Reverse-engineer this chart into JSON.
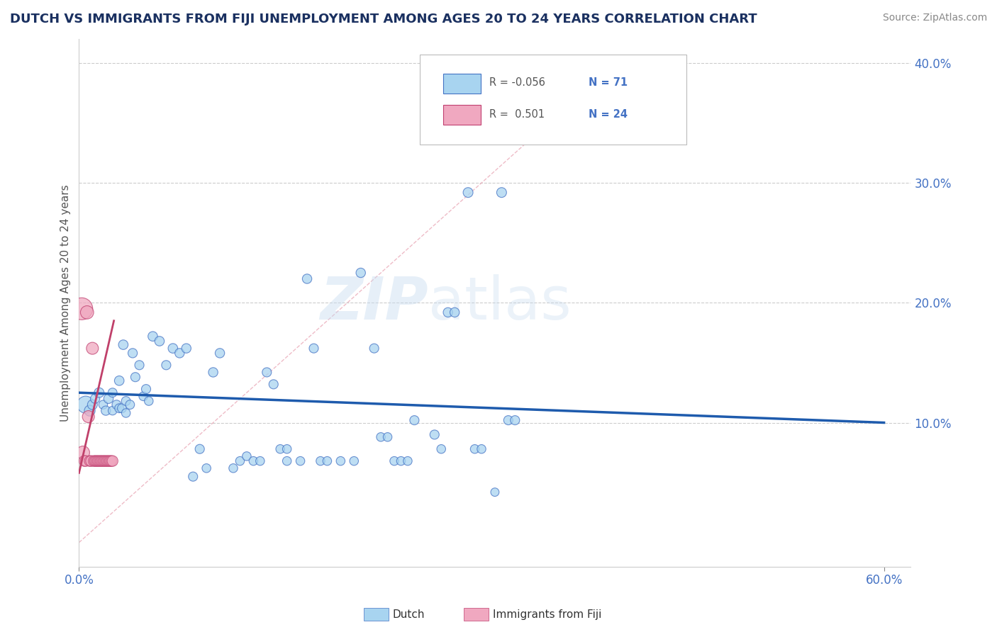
{
  "title": "DUTCH VS IMMIGRANTS FROM FIJI UNEMPLOYMENT AMONG AGES 20 TO 24 YEARS CORRELATION CHART",
  "source": "Source: ZipAtlas.com",
  "ylabel": "Unemployment Among Ages 20 to 24 years",
  "xlim": [
    0.0,
    0.62
  ],
  "ylim": [
    -0.02,
    0.42
  ],
  "xtick_positions": [
    0.0,
    0.6
  ],
  "xtick_labels": [
    "0.0%",
    "60.0%"
  ],
  "ytick_positions": [
    0.1,
    0.2,
    0.3,
    0.4
  ],
  "ytick_labels": [
    "10.0%",
    "20.0%",
    "30.0%",
    "40.0%"
  ],
  "grid_yticks": [
    0.1,
    0.2,
    0.3,
    0.4
  ],
  "legend_R1": "R = -0.056",
  "legend_N1": "N = 71",
  "legend_R2": "R =  0.501",
  "legend_N2": "N = 24",
  "legend_label1": "Dutch",
  "legend_label2": "Immigrants from Fiji",
  "color_dutch": "#A8D4F0",
  "color_fiji": "#F0A8C0",
  "color_dutch_edge": "#4472C4",
  "color_fiji_edge": "#C04070",
  "color_dutch_line": "#1E5BAD",
  "color_fiji_line": "#C0406A",
  "color_diag": "#E8A0A0",
  "color_title": "#1a3060",
  "color_axis_text": "#4472C4",
  "color_source": "#888888",
  "watermark": "ZIPatlas",
  "dutch_x": [
    0.005,
    0.008,
    0.01,
    0.012,
    0.015,
    0.018,
    0.02,
    0.022,
    0.025,
    0.025,
    0.028,
    0.03,
    0.03,
    0.032,
    0.033,
    0.035,
    0.035,
    0.038,
    0.04,
    0.042,
    0.045,
    0.048,
    0.05,
    0.052,
    0.055,
    0.06,
    0.065,
    0.07,
    0.075,
    0.08,
    0.085,
    0.09,
    0.095,
    0.1,
    0.105,
    0.115,
    0.12,
    0.125,
    0.13,
    0.135,
    0.14,
    0.145,
    0.15,
    0.155,
    0.155,
    0.165,
    0.17,
    0.175,
    0.18,
    0.185,
    0.195,
    0.205,
    0.21,
    0.22,
    0.225,
    0.23,
    0.235,
    0.24,
    0.245,
    0.25,
    0.265,
    0.27,
    0.275,
    0.28,
    0.29,
    0.295,
    0.3,
    0.31,
    0.315,
    0.32,
    0.325
  ],
  "dutch_y": [
    0.115,
    0.11,
    0.115,
    0.12,
    0.125,
    0.115,
    0.11,
    0.12,
    0.125,
    0.11,
    0.115,
    0.112,
    0.135,
    0.112,
    0.165,
    0.118,
    0.108,
    0.115,
    0.158,
    0.138,
    0.148,
    0.122,
    0.128,
    0.118,
    0.172,
    0.168,
    0.148,
    0.162,
    0.158,
    0.162,
    0.055,
    0.078,
    0.062,
    0.142,
    0.158,
    0.062,
    0.068,
    0.072,
    0.068,
    0.068,
    0.142,
    0.132,
    0.078,
    0.068,
    0.078,
    0.068,
    0.22,
    0.162,
    0.068,
    0.068,
    0.068,
    0.068,
    0.225,
    0.162,
    0.088,
    0.088,
    0.068,
    0.068,
    0.068,
    0.102,
    0.09,
    0.078,
    0.192,
    0.192,
    0.292,
    0.078,
    0.078,
    0.042,
    0.292,
    0.102,
    0.102
  ],
  "dutch_sizes": [
    300,
    120,
    100,
    90,
    100,
    80,
    90,
    95,
    85,
    80,
    85,
    85,
    95,
    85,
    95,
    85,
    80,
    85,
    90,
    88,
    88,
    82,
    88,
    80,
    95,
    95,
    88,
    95,
    92,
    92,
    88,
    88,
    80,
    92,
    92,
    80,
    80,
    80,
    80,
    80,
    88,
    88,
    80,
    80,
    80,
    80,
    92,
    88,
    80,
    80,
    80,
    80,
    92,
    88,
    80,
    80,
    80,
    80,
    80,
    88,
    88,
    80,
    92,
    92,
    100,
    80,
    80,
    72,
    100,
    88,
    88
  ],
  "fiji_x": [
    0.002,
    0.003,
    0.004,
    0.005,
    0.006,
    0.007,
    0.008,
    0.009,
    0.01,
    0.011,
    0.012,
    0.013,
    0.014,
    0.015,
    0.016,
    0.017,
    0.018,
    0.019,
    0.02,
    0.021,
    0.022,
    0.023,
    0.024,
    0.025
  ],
  "fiji_y": [
    0.195,
    0.075,
    0.068,
    0.068,
    0.192,
    0.105,
    0.068,
    0.068,
    0.162,
    0.068,
    0.068,
    0.068,
    0.068,
    0.068,
    0.068,
    0.068,
    0.068,
    0.068,
    0.068,
    0.068,
    0.068,
    0.068,
    0.068,
    0.068
  ],
  "fiji_sizes": [
    500,
    180,
    120,
    120,
    180,
    150,
    120,
    120,
    150,
    120,
    120,
    120,
    120,
    120,
    120,
    120,
    120,
    120,
    120,
    120,
    120,
    120,
    120,
    120
  ],
  "dutch_line_x": [
    0.0,
    0.6
  ],
  "dutch_line_y": [
    0.125,
    0.1
  ],
  "fiji_line_x": [
    0.0,
    0.026
  ],
  "fiji_line_y": [
    0.058,
    0.185
  ],
  "diag_line_x": [
    0.0,
    0.38
  ],
  "diag_line_y": [
    0.0,
    0.38
  ]
}
